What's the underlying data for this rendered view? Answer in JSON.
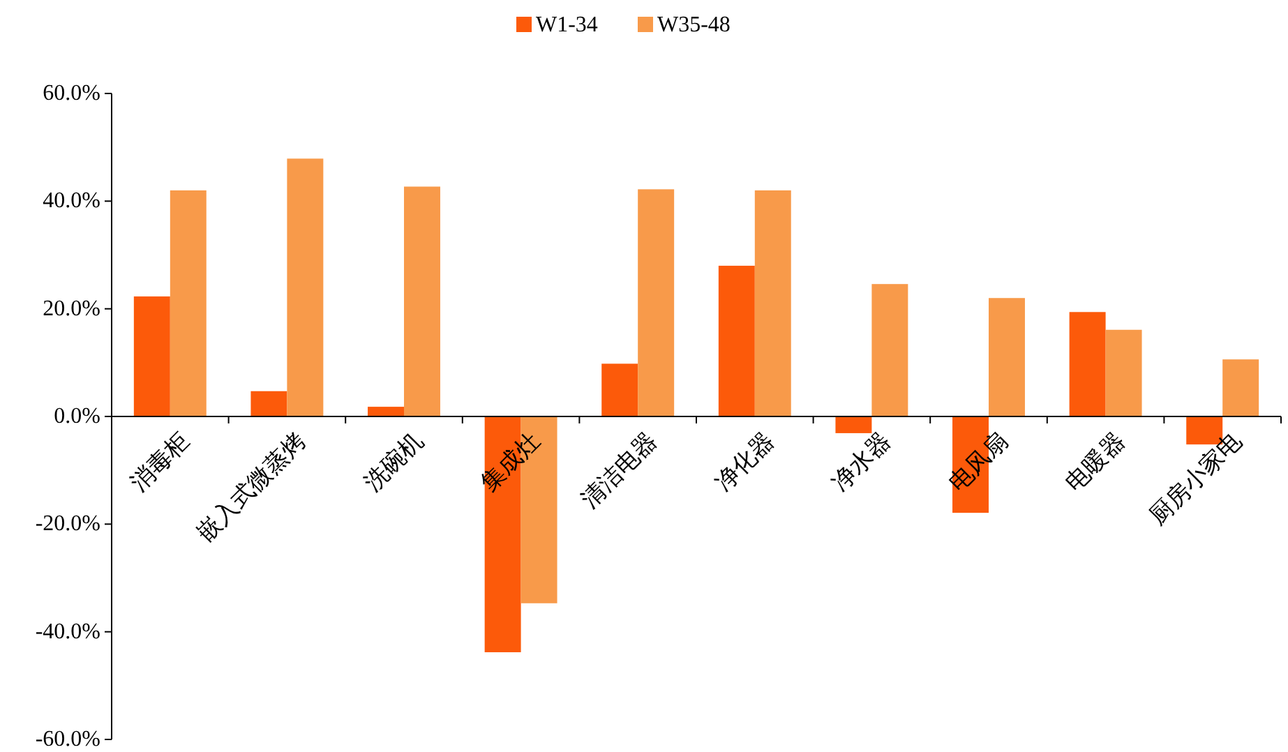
{
  "chart_data": {
    "type": "bar",
    "categories": [
      "消毒柜",
      "嵌入式微蒸烤",
      "洗碗机",
      "集成灶",
      "清洁电器",
      "净化器",
      "净水器",
      "电风扇",
      "电暖器",
      "厨房小家电"
    ],
    "series": [
      {
        "name": "W1-34",
        "color": "#fc5a0a",
        "values": [
          22.3,
          4.7,
          1.8,
          -43.8,
          9.8,
          28.0,
          -3.1,
          -17.9,
          19.4,
          -5.2
        ]
      },
      {
        "name": "W35-48",
        "color": "#f89a4a",
        "values": [
          42.0,
          47.9,
          42.7,
          -34.7,
          42.2,
          42.0,
          24.6,
          22.0,
          16.1,
          10.6
        ]
      }
    ],
    "ylim": [
      -60,
      60
    ],
    "yticks": [
      {
        "value": -60,
        "label": "-60.0%"
      },
      {
        "value": -40,
        "label": "-40.0%"
      },
      {
        "value": -20,
        "label": "-20.0%"
      },
      {
        "value": 0,
        "label": "0.0%"
      },
      {
        "value": 20,
        "label": "20.0%"
      },
      {
        "value": 40,
        "label": "40.0%"
      },
      {
        "value": 60,
        "label": "60.0%"
      }
    ],
    "grid": false,
    "legend": "top"
  }
}
